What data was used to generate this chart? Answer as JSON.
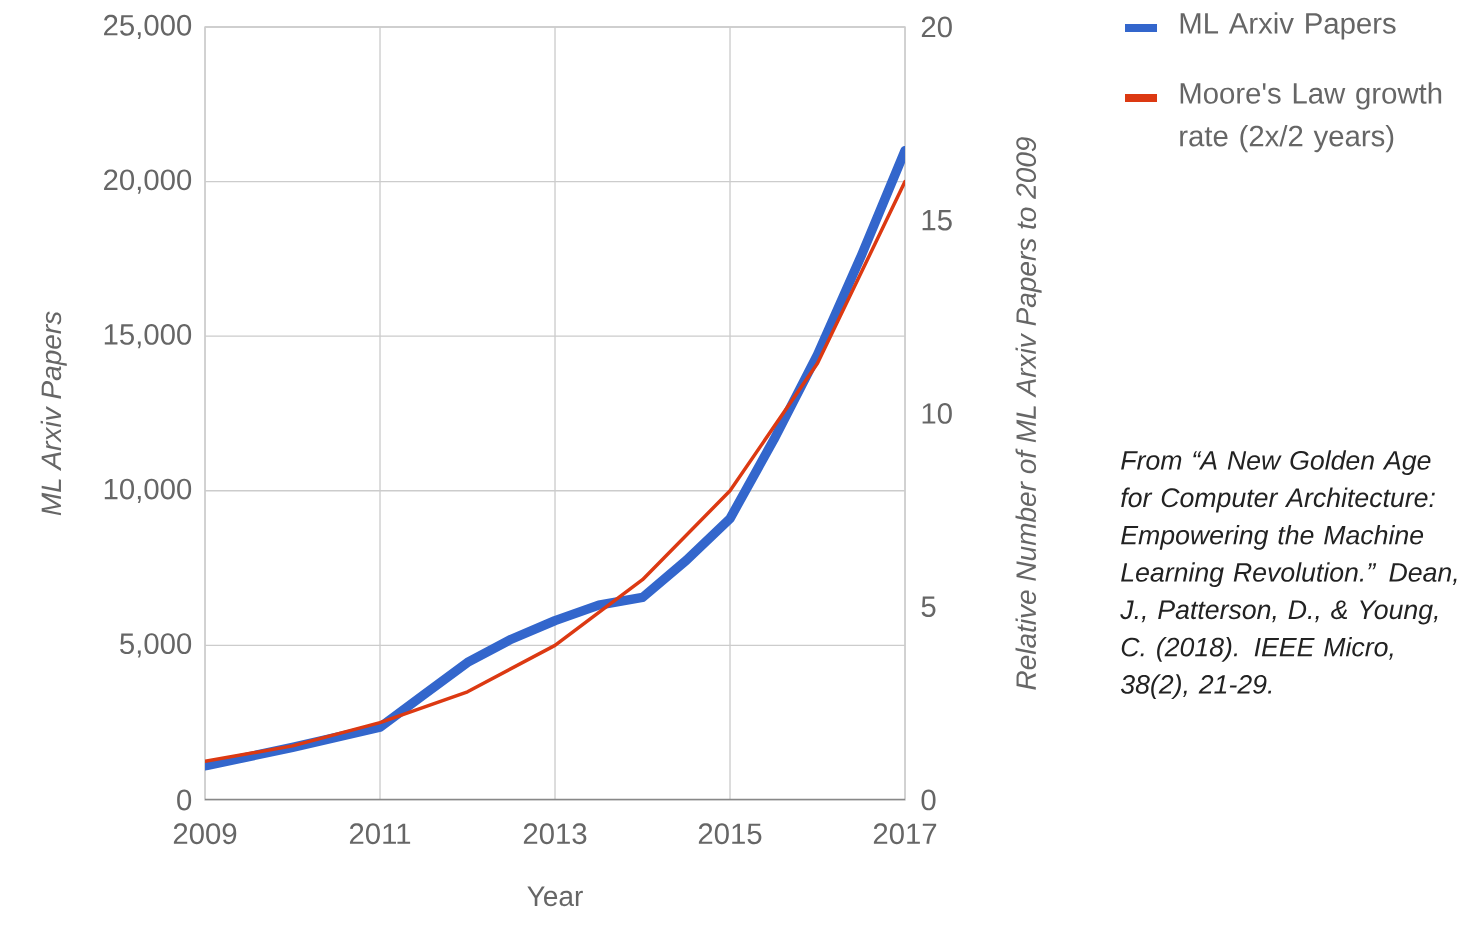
{
  "chart_data": {
    "type": "line",
    "xlabel": "Year",
    "ylabel": "ML Arxiv Papers",
    "y2label": "Relative Number of ML Arxiv Papers  to 2009",
    "xlim": [
      2009,
      2017
    ],
    "xticks": [
      2009,
      2011,
      2013,
      2015,
      2017
    ],
    "ylim": [
      0,
      25000
    ],
    "yticks": [
      {
        "value": 0,
        "label": "0"
      },
      {
        "value": 5000,
        "label": "5,000"
      },
      {
        "value": 10000,
        "label": "10,000"
      },
      {
        "value": 15000,
        "label": "15,000"
      },
      {
        "value": 20000,
        "label": "20,000"
      },
      {
        "value": 25000,
        "label": "25,000"
      }
    ],
    "y2lim": [
      0,
      20
    ],
    "y2ticks": [
      0,
      5,
      10,
      15,
      20
    ],
    "grid": true,
    "legend": "top right",
    "series": [
      {
        "name": "ML Arxiv Papers",
        "color": "#3366cc",
        "x": [
          2009,
          2010,
          2011,
          2011.5,
          2012,
          2012.5,
          2013,
          2013.5,
          2014,
          2014.5,
          2015,
          2015.5,
          2016,
          2016.5,
          2017
        ],
        "values": [
          1100,
          1700,
          2350,
          3400,
          4450,
          5200,
          5800,
          6300,
          6550,
          7750,
          9100,
          11650,
          14400,
          17600,
          21000
        ]
      },
      {
        "name": "Moore's Law growth rate (2x/2 years)",
        "color": "#dc3912",
        "axis": "y2",
        "x": [
          2009,
          2010,
          2011,
          2012,
          2013,
          2014,
          2015,
          2016,
          2017
        ],
        "values": [
          1.0,
          1.4,
          2.0,
          2.8,
          4.0,
          5.7,
          8.0,
          11.3,
          16.0
        ]
      }
    ],
    "annotations": [
      "From “A New Golden Age for Computer Architecture: Empowering the Machine Learning Revolution.” Dean, J., Patterson, D., & Young, C. (2018).  IEEE Micro, 38(2), 21-29."
    ]
  }
}
